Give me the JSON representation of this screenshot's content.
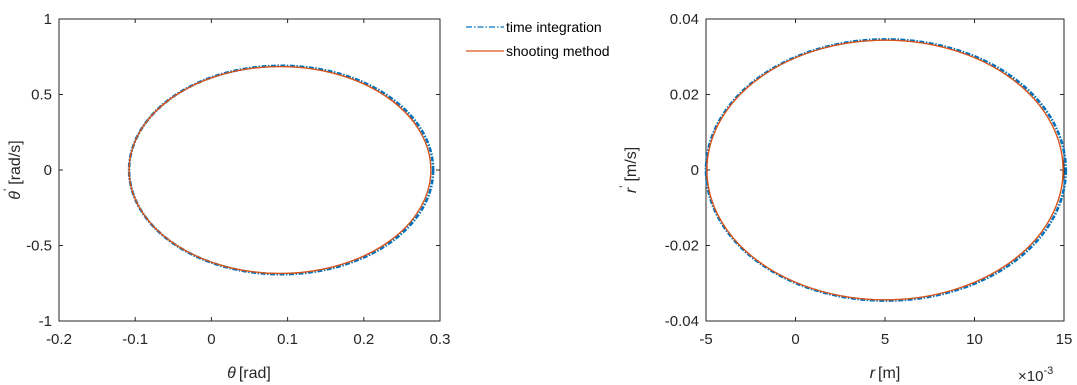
{
  "legend": {
    "entries": [
      {
        "label": "time integration",
        "color": "#0072BD",
        "style": "dash-dot"
      },
      {
        "label": "shooting method",
        "color": "#D95319",
        "style": "solid"
      }
    ]
  },
  "chart_data": [
    {
      "type": "line",
      "xlabel_symbol": "θ",
      "xlabel_unit": "[rad]",
      "ylabel_symbol": "θ",
      "ylabel_prime": "'",
      "ylabel_unit": "[rad/s]",
      "xlim": [
        -0.2,
        0.3
      ],
      "ylim": [
        -1,
        1
      ],
      "xticks": [
        "-0.2",
        "-0.1",
        "0",
        "0.1",
        "0.2",
        "0.3"
      ],
      "xtick_values": [
        -0.2,
        -0.1,
        0,
        0.1,
        0.2,
        0.3
      ],
      "yticks": [
        "1",
        "0.5",
        "0",
        "-0.5",
        "-1"
      ],
      "ytick_values": [
        1,
        0.5,
        0,
        -0.5,
        -1
      ],
      "series": [
        {
          "name": "time integration",
          "color": "#0072BD",
          "center": [
            0.0915,
            0
          ],
          "radius_x": 0.1995,
          "radius_y": 0.69
        },
        {
          "name": "shooting method",
          "color": "#D95319",
          "center": [
            0.09,
            0
          ],
          "radius_x": 0.198,
          "radius_y": 0.685
        }
      ]
    },
    {
      "type": "line",
      "xlabel_symbol": "r",
      "xlabel_unit": "[m]",
      "ylabel_symbol": "r",
      "ylabel_prime": "'",
      "ylabel_unit": "[m/s]",
      "x_exponent_base": "×10",
      "x_exponent_power": "-3",
      "xlim": [
        -5,
        15
      ],
      "ylim": [
        -0.04,
        0.04
      ],
      "xticks": [
        "-5",
        "0",
        "5",
        "10",
        "15"
      ],
      "xtick_values": [
        -5,
        0,
        5,
        10,
        15
      ],
      "yticks": [
        "0.04",
        "0.02",
        "0",
        "-0.02",
        "-0.04"
      ],
      "ytick_values": [
        0.04,
        0.02,
        0,
        -0.02,
        -0.04
      ],
      "series": [
        {
          "name": "time integration",
          "color": "#0072BD",
          "center": [
            5.05,
            0
          ],
          "radius_x": 10.05,
          "radius_y": 0.0346
        },
        {
          "name": "shooting method",
          "color": "#D95319",
          "center": [
            5.0,
            0
          ],
          "radius_x": 9.95,
          "radius_y": 0.0344
        }
      ]
    }
  ]
}
